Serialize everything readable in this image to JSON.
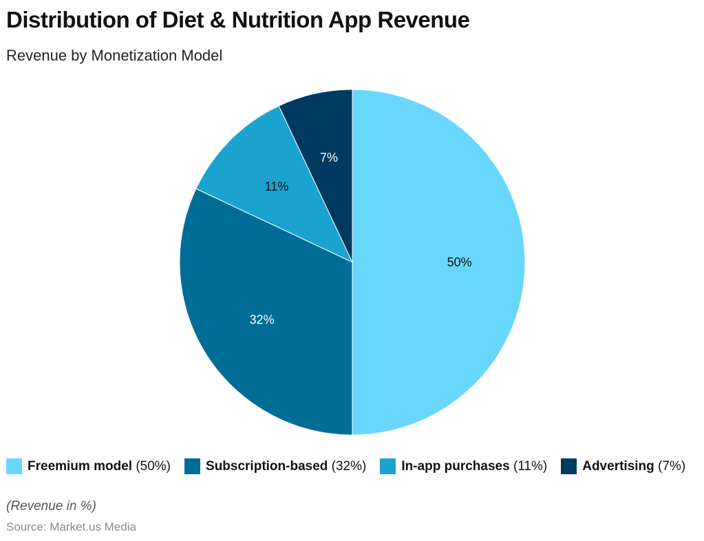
{
  "title": "Distribution of Diet & Nutrition App Revenue",
  "subtitle": "Revenue by Monetization Model",
  "note": "(Revenue in %)",
  "source": "Source: Market.us Media",
  "chart_data": {
    "type": "pie",
    "title": "Distribution of Diet & Nutrition App Revenue",
    "subtitle": "Revenue by Monetization Model",
    "legend_position": "bottom",
    "start": "top, clockwise",
    "slices": [
      {
        "name": "Freemium model",
        "value": 50,
        "label": "50%",
        "legend_value": "(50%)",
        "color": "#69D7FC",
        "label_color": "#111111"
      },
      {
        "name": "Subscription-based",
        "value": 32,
        "label": "32%",
        "legend_value": "(32%)",
        "color": "#006D96",
        "label_color": "#ffffff"
      },
      {
        "name": "In-app purchases",
        "value": 11,
        "label": "11%",
        "legend_value": "(11%)",
        "color": "#1BA3CF",
        "label_color": "#111111"
      },
      {
        "name": "Advertising",
        "value": 7,
        "label": "7%",
        "legend_value": "(7%)",
        "color": "#003A60",
        "label_color": "#ffffff"
      }
    ]
  }
}
